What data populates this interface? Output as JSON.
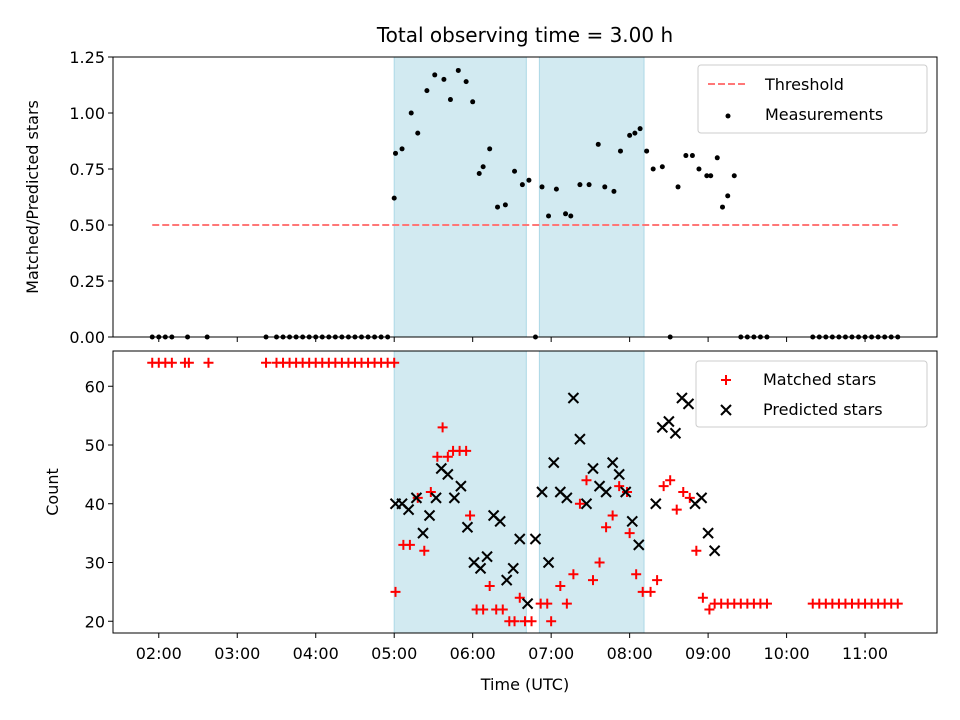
{
  "chart_data": [
    {
      "type": "scatter",
      "title": "Total observing time = 3.00 h",
      "xlabel": "",
      "ylabel": "Matched/Predicted stars",
      "xlim": [
        "01:25",
        "11:55"
      ],
      "ylim": [
        0,
        1.25
      ],
      "yticks": [
        "0.00",
        "0.25",
        "0.50",
        "0.75",
        "1.00",
        "1.25"
      ],
      "shaded_intervals": [
        [
          "05:00",
          "06:41"
        ],
        [
          "06:51",
          "08:11"
        ]
      ],
      "threshold": {
        "name": "Threshold",
        "value": 0.5,
        "x_range": [
          "01:55",
          "11:25"
        ],
        "color": "#ff7777"
      },
      "legend_position": "upper right",
      "series": [
        {
          "name": "Measurements",
          "color": "#000000",
          "x": [
            "01:55",
            "02:00",
            "02:05",
            "02:10",
            "02:22",
            "02:37",
            "03:22",
            "03:30",
            "03:35",
            "03:40",
            "03:45",
            "03:50",
            "03:55",
            "04:00",
            "04:05",
            "04:10",
            "04:15",
            "04:20",
            "04:25",
            "04:30",
            "04:35",
            "04:40",
            "04:45",
            "04:50",
            "04:55",
            "05:00",
            "05:01",
            "05:06",
            "05:13",
            "05:18",
            "05:25",
            "05:31",
            "05:38",
            "05:43",
            "05:49",
            "05:55",
            "06:00",
            "06:05",
            "06:08",
            "06:13",
            "06:19",
            "06:25",
            "06:32",
            "06:38",
            "06:43",
            "06:48",
            "06:53",
            "06:58",
            "07:04",
            "07:11",
            "07:15",
            "07:22",
            "07:29",
            "07:36",
            "07:41",
            "07:48",
            "07:53",
            "08:00",
            "08:04",
            "08:08",
            "08:13",
            "08:18",
            "08:25",
            "08:31",
            "08:37",
            "08:43",
            "08:48",
            "08:53",
            "08:59",
            "09:02",
            "09:07",
            "09:11",
            "09:15",
            "09:20",
            "09:25",
            "09:30",
            "09:35",
            "09:40",
            "09:45",
            "10:20",
            "10:25",
            "10:30",
            "10:35",
            "10:40",
            "10:45",
            "10:50",
            "10:55",
            "11:00",
            "11:05",
            "11:10",
            "11:15",
            "11:20",
            "11:25"
          ],
          "y": [
            0,
            0,
            0,
            0,
            0,
            0,
            0,
            0,
            0,
            0,
            0,
            0,
            0,
            0,
            0,
            0,
            0,
            0,
            0,
            0,
            0,
            0,
            0,
            0,
            0,
            0.62,
            0.82,
            0.84,
            1.0,
            0.91,
            1.1,
            1.17,
            1.15,
            1.06,
            1.19,
            1.14,
            1.05,
            0.73,
            0.76,
            0.84,
            0.58,
            0.59,
            0.74,
            0.68,
            0.7,
            0,
            0.67,
            0.54,
            0.66,
            0.55,
            0.54,
            0.68,
            0.68,
            0.86,
            0.67,
            0.65,
            0.83,
            0.9,
            0.91,
            0.93,
            0.83,
            0.75,
            0.76,
            0,
            0.67,
            0.81,
            0.81,
            0.75,
            0.72,
            0.72,
            0.8,
            0.58,
            0.63,
            0.72,
            0,
            0,
            0,
            0,
            0,
            0,
            0,
            0,
            0,
            0,
            0,
            0,
            0,
            0,
            0,
            0,
            0,
            0,
            0
          ]
        }
      ]
    },
    {
      "type": "scatter",
      "title": "",
      "xlabel": "Time (UTC)",
      "ylabel": "Count",
      "xlim": [
        "01:25",
        "11:55"
      ],
      "ylim": [
        18,
        66
      ],
      "yticks": [
        "20",
        "30",
        "40",
        "50",
        "60"
      ],
      "xticks": [
        "02:00",
        "03:00",
        "04:00",
        "05:00",
        "06:00",
        "07:00",
        "08:00",
        "09:00",
        "10:00",
        "11:00"
      ],
      "shaded_intervals": [
        [
          "05:00",
          "06:41"
        ],
        [
          "06:51",
          "08:11"
        ]
      ],
      "legend_position": "upper right",
      "series": [
        {
          "name": "Matched stars",
          "marker": "plus",
          "color": "#ff0000",
          "points": [
            [
              "01:55",
              64
            ],
            [
              "02:00",
              64
            ],
            [
              "02:05",
              64
            ],
            [
              "02:10",
              64
            ],
            [
              "02:20",
              64
            ],
            [
              "02:23",
              64
            ],
            [
              "02:38",
              64
            ],
            [
              "03:22",
              64
            ],
            [
              "03:30",
              64
            ],
            [
              "03:35",
              64
            ],
            [
              "03:40",
              64
            ],
            [
              "03:45",
              64
            ],
            [
              "03:50",
              64
            ],
            [
              "03:55",
              64
            ],
            [
              "04:00",
              64
            ],
            [
              "04:05",
              64
            ],
            [
              "04:10",
              64
            ],
            [
              "04:15",
              64
            ],
            [
              "04:20",
              64
            ],
            [
              "04:25",
              64
            ],
            [
              "04:30",
              64
            ],
            [
              "04:35",
              64
            ],
            [
              "04:40",
              64
            ],
            [
              "04:45",
              64
            ],
            [
              "04:50",
              64
            ],
            [
              "04:55",
              64
            ],
            [
              "05:00",
              64
            ],
            [
              "05:01",
              25
            ],
            [
              "05:07",
              33
            ],
            [
              "05:12",
              33
            ],
            [
              "05:18",
              41
            ],
            [
              "05:23",
              32
            ],
            [
              "05:28",
              42
            ],
            [
              "05:33",
              48
            ],
            [
              "05:37",
              53
            ],
            [
              "05:41",
              48
            ],
            [
              "05:45",
              49
            ],
            [
              "05:50",
              49
            ],
            [
              "05:55",
              49
            ],
            [
              "05:58",
              38
            ],
            [
              "06:03",
              22
            ],
            [
              "06:08",
              22
            ],
            [
              "06:13",
              26
            ],
            [
              "06:18",
              22
            ],
            [
              "06:23",
              22
            ],
            [
              "06:28",
              20
            ],
            [
              "06:32",
              20
            ],
            [
              "06:36",
              24
            ],
            [
              "06:40",
              20
            ],
            [
              "06:45",
              20
            ],
            [
              "06:52",
              23
            ],
            [
              "06:57",
              23
            ],
            [
              "07:00",
              20
            ],
            [
              "07:07",
              26
            ],
            [
              "07:12",
              23
            ],
            [
              "07:17",
              28
            ],
            [
              "07:22",
              40
            ],
            [
              "07:27",
              44
            ],
            [
              "07:32",
              27
            ],
            [
              "07:37",
              30
            ],
            [
              "07:42",
              36
            ],
            [
              "07:47",
              38
            ],
            [
              "07:52",
              43
            ],
            [
              "07:58",
              42
            ],
            [
              "08:00",
              35
            ],
            [
              "08:05",
              28
            ],
            [
              "08:10",
              25
            ],
            [
              "08:16",
              25
            ],
            [
              "08:21",
              27
            ],
            [
              "08:26",
              43
            ],
            [
              "08:31",
              44
            ],
            [
              "08:36",
              39
            ],
            [
              "08:41",
              42
            ],
            [
              "08:46",
              41
            ],
            [
              "08:51",
              32
            ],
            [
              "08:56",
              24
            ],
            [
              "09:01",
              22
            ],
            [
              "09:05",
              23
            ],
            [
              "09:10",
              23
            ],
            [
              "09:15",
              23
            ],
            [
              "09:20",
              23
            ],
            [
              "09:25",
              23
            ],
            [
              "09:30",
              23
            ],
            [
              "09:35",
              23
            ],
            [
              "09:40",
              23
            ],
            [
              "09:45",
              23
            ],
            [
              "10:20",
              23
            ],
            [
              "10:25",
              23
            ],
            [
              "10:30",
              23
            ],
            [
              "10:35",
              23
            ],
            [
              "10:40",
              23
            ],
            [
              "10:45",
              23
            ],
            [
              "10:50",
              23
            ],
            [
              "10:55",
              23
            ],
            [
              "11:00",
              23
            ],
            [
              "11:05",
              23
            ],
            [
              "11:10",
              23
            ],
            [
              "11:15",
              23
            ],
            [
              "11:20",
              23
            ],
            [
              "11:25",
              23
            ]
          ]
        },
        {
          "name": "Predicted stars",
          "marker": "x",
          "color": "#000000",
          "points": [
            [
              "05:01",
              40
            ],
            [
              "05:06",
              40
            ],
            [
              "05:11",
              39
            ],
            [
              "05:17",
              41
            ],
            [
              "05:22",
              35
            ],
            [
              "05:27",
              38
            ],
            [
              "05:32",
              41
            ],
            [
              "05:36",
              46
            ],
            [
              "05:41",
              45
            ],
            [
              "05:46",
              41
            ],
            [
              "05:51",
              43
            ],
            [
              "05:56",
              36
            ],
            [
              "06:01",
              30
            ],
            [
              "06:06",
              29
            ],
            [
              "06:11",
              31
            ],
            [
              "06:16",
              38
            ],
            [
              "06:21",
              37
            ],
            [
              "06:26",
              27
            ],
            [
              "06:31",
              29
            ],
            [
              "06:36",
              34
            ],
            [
              "06:42",
              23
            ],
            [
              "06:48",
              34
            ],
            [
              "06:53",
              42
            ],
            [
              "06:58",
              30
            ],
            [
              "07:02",
              47
            ],
            [
              "07:07",
              42
            ],
            [
              "07:12",
              41
            ],
            [
              "07:17",
              58
            ],
            [
              "07:22",
              51
            ],
            [
              "07:27",
              40
            ],
            [
              "07:32",
              46
            ],
            [
              "07:37",
              43
            ],
            [
              "07:42",
              42
            ],
            [
              "07:47",
              47
            ],
            [
              "07:52",
              45
            ],
            [
              "07:57",
              42
            ],
            [
              "08:02",
              37
            ],
            [
              "08:07",
              33
            ],
            [
              "08:20",
              40
            ],
            [
              "08:25",
              53
            ],
            [
              "08:30",
              54
            ],
            [
              "08:35",
              52
            ],
            [
              "08:40",
              58
            ],
            [
              "08:45",
              57
            ],
            [
              "08:50",
              40
            ],
            [
              "08:55",
              41
            ],
            [
              "09:00",
              35
            ],
            [
              "09:05",
              32
            ]
          ]
        }
      ]
    }
  ]
}
